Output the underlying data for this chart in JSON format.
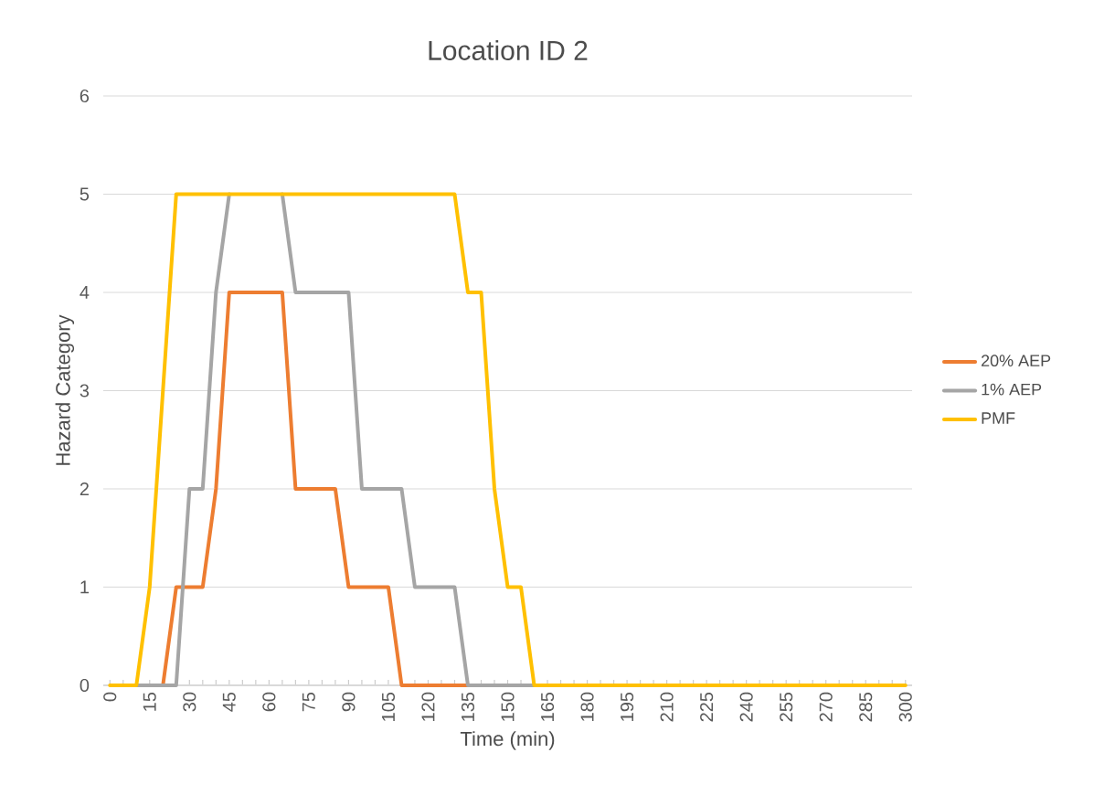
{
  "chart_data": {
    "type": "line",
    "title": "Location ID 2",
    "xlabel": "Time (min)",
    "ylabel": "Hazard Category",
    "x": [
      0,
      5,
      10,
      15,
      20,
      25,
      30,
      35,
      40,
      45,
      50,
      55,
      60,
      65,
      70,
      75,
      80,
      85,
      90,
      95,
      100,
      105,
      110,
      115,
      120,
      125,
      130,
      135,
      140,
      145,
      150,
      155,
      160,
      165,
      170,
      175,
      180,
      185,
      190,
      195,
      200,
      205,
      210,
      215,
      220,
      225,
      230,
      235,
      240,
      245,
      250,
      255,
      260,
      265,
      270,
      275,
      280,
      285,
      290,
      295,
      300
    ],
    "series": [
      {
        "name": "20% AEP",
        "color": "#ed7d31",
        "values": [
          null,
          null,
          null,
          null,
          0,
          1,
          1,
          1,
          2,
          4,
          4,
          4,
          4,
          4,
          2,
          2,
          2,
          2,
          1,
          1,
          1,
          1,
          0,
          0,
          0,
          0,
          0,
          0,
          null,
          null,
          null,
          null,
          null,
          null,
          null,
          null,
          null,
          null,
          null,
          null,
          null,
          null,
          null,
          null,
          null,
          null,
          null,
          null,
          null,
          null,
          null,
          null,
          null,
          null,
          null,
          null,
          null,
          null,
          null,
          null,
          null
        ]
      },
      {
        "name": "1% AEP",
        "color": "#a5a5a5",
        "values": [
          null,
          null,
          0,
          0,
          0,
          0,
          2,
          2,
          4,
          5,
          null,
          null,
          null,
          5,
          4,
          4,
          4,
          4,
          4,
          2,
          2,
          2,
          2,
          1,
          1,
          1,
          1,
          0,
          0,
          0,
          0,
          0,
          0,
          null,
          null,
          null,
          null,
          null,
          null,
          null,
          null,
          null,
          null,
          null,
          null,
          null,
          null,
          null,
          null,
          null,
          null,
          null,
          null,
          null,
          null,
          null,
          null,
          null,
          null,
          null,
          null
        ]
      },
      {
        "name": "PMF",
        "color": "#ffc000",
        "values": [
          0,
          0,
          0,
          1,
          3,
          5,
          5,
          5,
          5,
          5,
          5,
          5,
          5,
          5,
          5,
          5,
          5,
          5,
          5,
          5,
          5,
          5,
          5,
          5,
          5,
          5,
          5,
          4,
          4,
          2,
          1,
          1,
          0,
          0,
          0,
          0,
          0,
          0,
          0,
          0,
          0,
          0,
          0,
          0,
          0,
          0,
          0,
          0,
          0,
          0,
          0,
          0,
          0,
          0,
          0,
          0,
          0,
          0,
          0,
          0,
          0
        ]
      }
    ],
    "xlim": [
      -2.5,
      302.5
    ],
    "ylim": [
      0,
      6
    ],
    "yticks": [
      0,
      1,
      2,
      3,
      4,
      5,
      6
    ],
    "xticks": [
      0,
      {
        "value": 5,
        "label": null
      },
      {
        "value": 10,
        "label": null
      },
      15,
      {
        "value": 20,
        "label": null
      },
      {
        "value": 25,
        "label": null
      },
      30,
      {
        "value": 35,
        "label": null
      },
      {
        "value": 40,
        "label": null
      },
      45,
      {
        "value": 50,
        "label": null
      },
      {
        "value": 55,
        "label": null
      },
      60,
      {
        "value": 65,
        "label": null
      },
      {
        "value": 70,
        "label": null
      },
      75,
      {
        "value": 80,
        "label": null
      },
      {
        "value": 85,
        "label": null
      },
      90,
      {
        "value": 95,
        "label": null
      },
      {
        "value": 100,
        "label": null
      },
      105,
      {
        "value": 110,
        "label": null
      },
      {
        "value": 115,
        "label": null
      },
      120,
      {
        "value": 125,
        "label": null
      },
      {
        "value": 130,
        "label": null
      },
      135,
      {
        "value": 140,
        "label": null
      },
      {
        "value": 145,
        "label": null
      },
      150,
      {
        "value": 155,
        "label": null
      },
      {
        "value": 160,
        "label": null
      },
      165,
      {
        "value": 170,
        "label": null
      },
      {
        "value": 175,
        "label": null
      },
      180,
      {
        "value": 185,
        "label": null
      },
      {
        "value": 190,
        "label": null
      },
      195,
      {
        "value": 200,
        "label": null
      },
      {
        "value": 205,
        "label": null
      },
      210,
      {
        "value": 215,
        "label": null
      },
      {
        "value": 220,
        "label": null
      },
      225,
      {
        "value": 230,
        "label": null
      },
      {
        "value": 235,
        "label": null
      },
      240,
      {
        "value": 245,
        "label": null
      },
      {
        "value": 250,
        "label": null
      },
      255,
      {
        "value": 260,
        "label": null
      },
      {
        "value": 265,
        "label": null
      },
      270,
      {
        "value": 275,
        "label": null
      },
      {
        "value": 280,
        "label": null
      },
      285,
      {
        "value": 290,
        "label": null
      },
      {
        "value": 295,
        "label": null
      },
      300
    ],
    "grid": "y",
    "legend": "right",
    "marker": "none",
    "line_style": "solid"
  }
}
